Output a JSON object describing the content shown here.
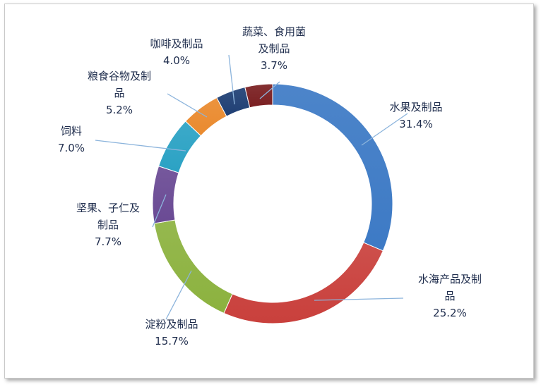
{
  "chart_data": {
    "type": "pie",
    "donut": true,
    "title": "",
    "categories": [
      "水果及制品",
      "水海产品及制品",
      "淀粉及制品",
      "坚果、子仁及制品",
      "饲料",
      "粮食谷物及制品",
      "咖啡及制品",
      "蔬菜、食用菌及制品"
    ],
    "values": [
      31.4,
      25.2,
      15.7,
      7.7,
      7.0,
      5.2,
      4.0,
      3.7
    ],
    "value_labels": [
      "31.4%",
      "25.2%",
      "15.7%",
      "7.7%",
      "7.0%",
      "5.2%",
      "4.0%",
      "3.7%"
    ],
    "label_lines": [
      [
        "水果及制品",
        "31.4%"
      ],
      [
        "水海产品及制",
        "品",
        "25.2%"
      ],
      [
        "淀粉及制品",
        "15.7%"
      ],
      [
        "坚果、子仁及",
        "制品",
        "7.7%"
      ],
      [
        "饲料",
        "7.0%"
      ],
      [
        "粮食谷物及制",
        "品",
        "5.2%"
      ],
      [
        "咖啡及制品",
        "4.0%"
      ],
      [
        "蔬菜、食用菌",
        "及制品",
        "3.7%"
      ]
    ],
    "colors": [
      "#3d7ac5",
      "#c9403c",
      "#8cb23f",
      "#6a4a94",
      "#2ba2c4",
      "#ea8a2e",
      "#1f3f74",
      "#7a1f21"
    ],
    "legend": "none"
  }
}
